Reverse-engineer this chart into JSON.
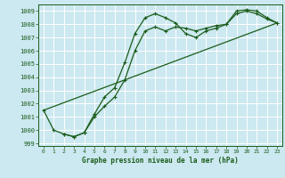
{
  "bg_color": "#cce8f0",
  "grid_color": "#ffffff",
  "line_color": "#1a5c1a",
  "xlabel": "Graphe pression niveau de la mer (hPa)",
  "xlabel_color": "#1a5c1a",
  "ylim": [
    998.8,
    1009.5
  ],
  "xlim": [
    -0.5,
    23.5
  ],
  "yticks": [
    999,
    1000,
    1001,
    1002,
    1003,
    1004,
    1005,
    1006,
    1007,
    1008,
    1009
  ],
  "xticks": [
    0,
    1,
    2,
    3,
    4,
    5,
    6,
    7,
    8,
    9,
    10,
    11,
    12,
    13,
    14,
    15,
    16,
    17,
    18,
    19,
    20,
    21,
    22,
    23
  ],
  "series1_x": [
    0,
    1,
    2,
    3,
    4,
    5,
    6,
    7,
    8,
    9,
    10,
    11,
    12,
    13,
    14,
    15,
    16,
    17,
    18,
    19,
    20,
    21,
    22,
    23
  ],
  "series1_y": [
    1001.5,
    1000.0,
    999.7,
    999.5,
    999.8,
    1001.2,
    1002.5,
    1003.2,
    1005.1,
    1007.3,
    1008.5,
    1008.8,
    1008.5,
    1008.1,
    1007.3,
    1007.0,
    1007.5,
    1007.7,
    1008.0,
    1009.0,
    1009.1,
    1009.0,
    1008.5,
    1008.1
  ],
  "series2_x": [
    2,
    3,
    4,
    5,
    6,
    7,
    8,
    9,
    10,
    11,
    12,
    13,
    14,
    15,
    16,
    17,
    18,
    19,
    20,
    21,
    22,
    23
  ],
  "series2_y": [
    999.7,
    999.5,
    999.8,
    1001.0,
    1001.8,
    1002.5,
    1003.8,
    1006.0,
    1007.5,
    1007.8,
    1007.5,
    1007.8,
    1007.7,
    1007.5,
    1007.7,
    1007.9,
    1008.0,
    1008.8,
    1009.0,
    1008.8,
    1008.4,
    1008.1
  ],
  "series3_x": [
    0,
    23
  ],
  "series3_y": [
    1001.5,
    1008.1
  ]
}
